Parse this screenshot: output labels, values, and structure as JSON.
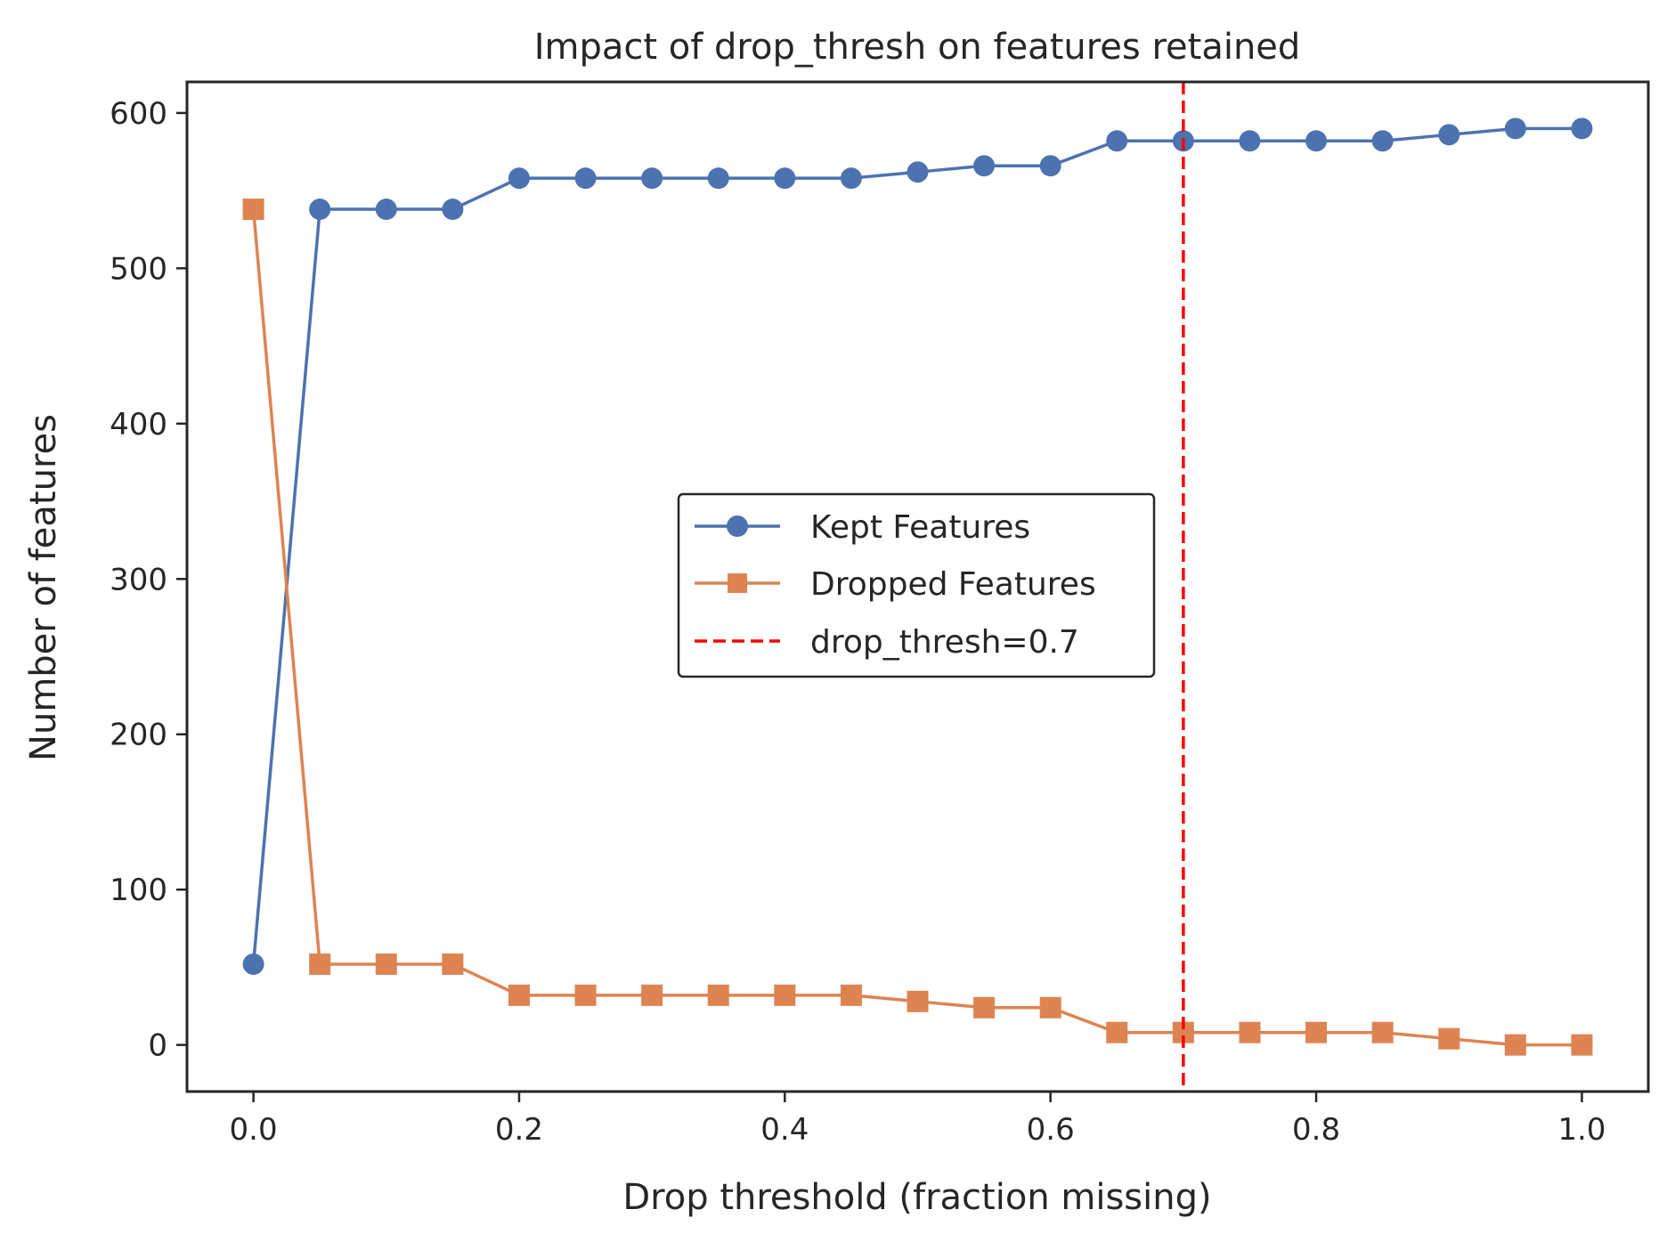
{
  "chart_data": {
    "type": "line",
    "title": "Impact of drop_thresh on features retained",
    "xlabel": "Drop threshold (fraction missing)",
    "ylabel": "Number of features",
    "xlim": [
      -0.05,
      1.05
    ],
    "ylim": [
      -30,
      620
    ],
    "xticks": [
      0.0,
      0.2,
      0.4,
      0.6,
      0.8,
      1.0
    ],
    "xtick_labels": [
      "0.0",
      "0.2",
      "0.4",
      "0.6",
      "0.8",
      "1.0"
    ],
    "yticks": [
      0,
      100,
      200,
      300,
      400,
      500,
      600
    ],
    "ytick_labels": [
      "0",
      "100",
      "200",
      "300",
      "400",
      "500",
      "600"
    ],
    "grid": false,
    "legend_position": "center",
    "x": [
      0.0,
      0.05,
      0.1,
      0.15,
      0.2,
      0.25,
      0.3,
      0.35,
      0.4,
      0.45,
      0.5,
      0.55,
      0.6,
      0.65,
      0.7,
      0.75,
      0.8,
      0.85,
      0.9,
      0.95,
      1.0
    ],
    "series": [
      {
        "name": "Kept Features",
        "marker": "circle",
        "color": "#4c72b0",
        "values": [
          52,
          538,
          538,
          538,
          558,
          558,
          558,
          558,
          558,
          558,
          562,
          566,
          566,
          582,
          582,
          582,
          582,
          582,
          586,
          590,
          590
        ]
      },
      {
        "name": "Dropped Features",
        "marker": "square",
        "color": "#dd8452",
        "values": [
          538,
          52,
          52,
          52,
          32,
          32,
          32,
          32,
          32,
          32,
          28,
          24,
          24,
          8,
          8,
          8,
          8,
          8,
          4,
          0,
          0
        ]
      }
    ],
    "reference_line": {
      "name": "drop_thresh=0.7",
      "orientation": "vertical",
      "x": 0.7,
      "color": "#ff0000",
      "style": "dashed"
    }
  }
}
